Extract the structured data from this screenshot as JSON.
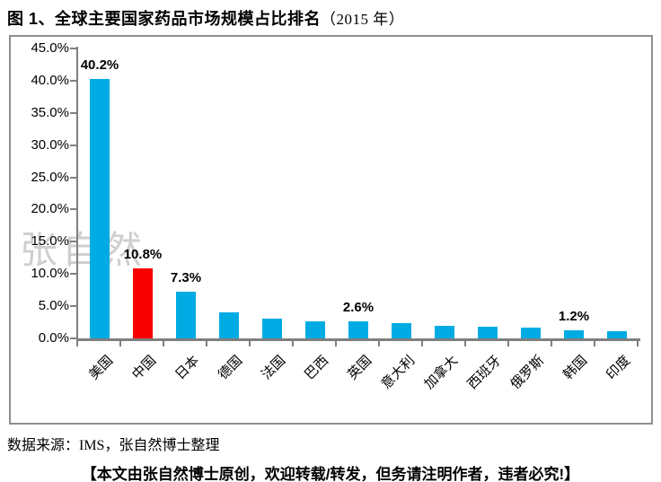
{
  "header": {
    "title_main": "图 1、全球主要国家药品市场规模占比排名",
    "title_year": "（2015 年）"
  },
  "watermark": "张自然",
  "chart_data": {
    "type": "bar",
    "title": "全球主要国家药品市场规模占比排名（2015 年）",
    "categories": [
      "美国",
      "中国",
      "日本",
      "德国",
      "法国",
      "巴西",
      "英国",
      "意大利",
      "加拿大",
      "西班牙",
      "俄罗斯",
      "韩国",
      "印度"
    ],
    "values": [
      40.2,
      10.8,
      7.3,
      4.0,
      3.0,
      2.7,
      2.6,
      2.4,
      1.9,
      1.8,
      1.7,
      1.2,
      1.1
    ],
    "point_labels": [
      "40.2%",
      "10.8%",
      "7.3%",
      null,
      null,
      null,
      "2.6%",
      null,
      null,
      null,
      null,
      "1.2%",
      null
    ],
    "highlight_index": 1,
    "colors": {
      "default": "#00ABE3",
      "highlight": "#F80000",
      "axis": "#7f7f7f"
    },
    "xlabel": "",
    "ylabel": "",
    "ylim": [
      0,
      45
    ],
    "ytick_step": 5,
    "ytick_labels": [
      "0.0%",
      "5.0%",
      "10.0%",
      "15.0%",
      "20.0%",
      "25.0%",
      "30.0%",
      "35.0%",
      "40.0%",
      "45.0%"
    ],
    "grid": false,
    "legend": false
  },
  "footer": {
    "source": "数据来源：IMS，张自然博士整理",
    "notice": "【本文由张自然博士原创，欢迎转载/转发，但务请注明作者，违者必究!】"
  }
}
